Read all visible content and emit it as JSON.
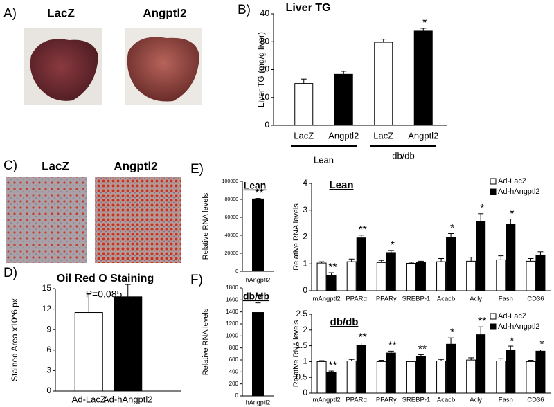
{
  "figure": {
    "panel_a": {
      "label": "A)",
      "images": [
        "LacZ",
        "Angptl2"
      ]
    },
    "panel_c": {
      "label": "C)",
      "images": [
        "LacZ",
        "Angptl2"
      ]
    }
  },
  "chart_data": [
    {
      "type": "bar",
      "panel_label": "B)",
      "title": "Liver TG",
      "y_label": "Liver TG (mg/g liver)",
      "categories": [
        "LacZ",
        "Angptl2",
        "LacZ",
        "Angptl2"
      ],
      "groups": [
        "Lean",
        "db/db"
      ],
      "values": [
        15,
        18.3,
        29.8,
        33.8
      ],
      "errors": [
        1.6,
        1.1,
        1.1,
        1.0
      ],
      "colors": [
        "#ffffff",
        "#000000",
        "#ffffff",
        "#000000"
      ],
      "significance": [
        null,
        null,
        null,
        "*"
      ],
      "ylim": [
        0,
        40
      ],
      "yticks": [
        0,
        10,
        20,
        30,
        40
      ]
    },
    {
      "type": "bar",
      "panel_label": "D)",
      "title": "Oil Red O Staining",
      "y_label": "Stained Area x10^6 px",
      "annotation": "P=0.085",
      "categories": [
        "Ad-LacZ",
        "Ad-hAngptl2"
      ],
      "values": [
        11.5,
        13.8
      ],
      "errors": [
        2.8,
        1.8
      ],
      "colors": [
        "#ffffff",
        "#000000"
      ],
      "ylim": [
        0,
        15
      ],
      "yticks": [
        0,
        3,
        6,
        9,
        12,
        15
      ]
    },
    {
      "type": "bar",
      "panel_label": "E)",
      "title": "Lean",
      "y_label": "Relative RNA levels",
      "categories": [
        "hAngptl2"
      ],
      "values": [
        80500
      ],
      "errors": [
        600
      ],
      "colors": [
        "#000000"
      ],
      "significance": [
        "**"
      ],
      "ylim": [
        0,
        100000
      ],
      "yticks": [
        0,
        20000,
        40000,
        60000,
        80000,
        100000
      ]
    },
    {
      "type": "bar",
      "title": "Lean",
      "y_label": "Relative RNA levels",
      "categories": [
        "mAngptl2",
        "PPARα",
        "PPARγ",
        "SREBP-1",
        "Acacb",
        "Acly",
        "Fasn",
        "CD36"
      ],
      "series": [
        {
          "name": "Ad-LacZ",
          "color": "#ffffff",
          "values": [
            1.03,
            1.08,
            1.05,
            1.02,
            1.08,
            1.1,
            1.15,
            1.1
          ],
          "errors": [
            0.05,
            0.1,
            0.08,
            0.04,
            0.12,
            0.15,
            0.15,
            0.1
          ]
        },
        {
          "name": "Ad-hAngptl2",
          "color": "#000000",
          "values": [
            0.57,
            1.97,
            1.42,
            1.05,
            1.98,
            2.57,
            2.47,
            1.33
          ],
          "errors": [
            0.1,
            0.1,
            0.08,
            0.05,
            0.15,
            0.3,
            0.2,
            0.12
          ],
          "significance": [
            "**",
            "**",
            "*",
            null,
            "*",
            "*",
            "*",
            null
          ]
        }
      ],
      "ylim": [
        0,
        4
      ],
      "yticks": [
        0,
        1,
        2,
        3,
        4
      ],
      "legend": "top-right"
    },
    {
      "type": "bar",
      "panel_label": "F)",
      "title": "db/db",
      "y_label": "Relative RNA levels",
      "categories": [
        "hAngptl2"
      ],
      "values": [
        1390
      ],
      "errors": [
        160
      ],
      "colors": [
        "#000000"
      ],
      "significance": [
        "**"
      ],
      "ylim": [
        0,
        1800
      ],
      "yticks": [
        0,
        200,
        400,
        600,
        800,
        1000,
        1200,
        1400,
        1600,
        1800
      ]
    },
    {
      "type": "bar",
      "title": "db/db",
      "y_label": "Relative RNA levels",
      "categories": [
        "mAngptl2",
        "PPARα",
        "PPARγ",
        "SREBP-1",
        "Acacb",
        "Acly",
        "Fasn",
        "CD36"
      ],
      "series": [
        {
          "name": "Ad-LacZ",
          "color": "#ffffff",
          "values": [
            1.0,
            1.02,
            1.0,
            1.0,
            1.02,
            1.05,
            1.02,
            1.0
          ],
          "errors": [
            0.03,
            0.05,
            0.04,
            0.02,
            0.05,
            0.07,
            0.07,
            0.04
          ]
        },
        {
          "name": "Ad-hAngptl2",
          "color": "#000000",
          "values": [
            0.65,
            1.52,
            1.27,
            1.17,
            1.55,
            1.85,
            1.37,
            1.33
          ],
          "errors": [
            0.05,
            0.07,
            0.06,
            0.05,
            0.2,
            0.25,
            0.12,
            0.04
          ],
          "significance": [
            "**",
            "**",
            "**",
            "**",
            "*",
            "**",
            "*",
            "*"
          ]
        }
      ],
      "ylim": [
        0,
        2.5
      ],
      "yticks": [
        0,
        0.5,
        1,
        1.5,
        2,
        2.5
      ],
      "legend": "top-right"
    }
  ]
}
